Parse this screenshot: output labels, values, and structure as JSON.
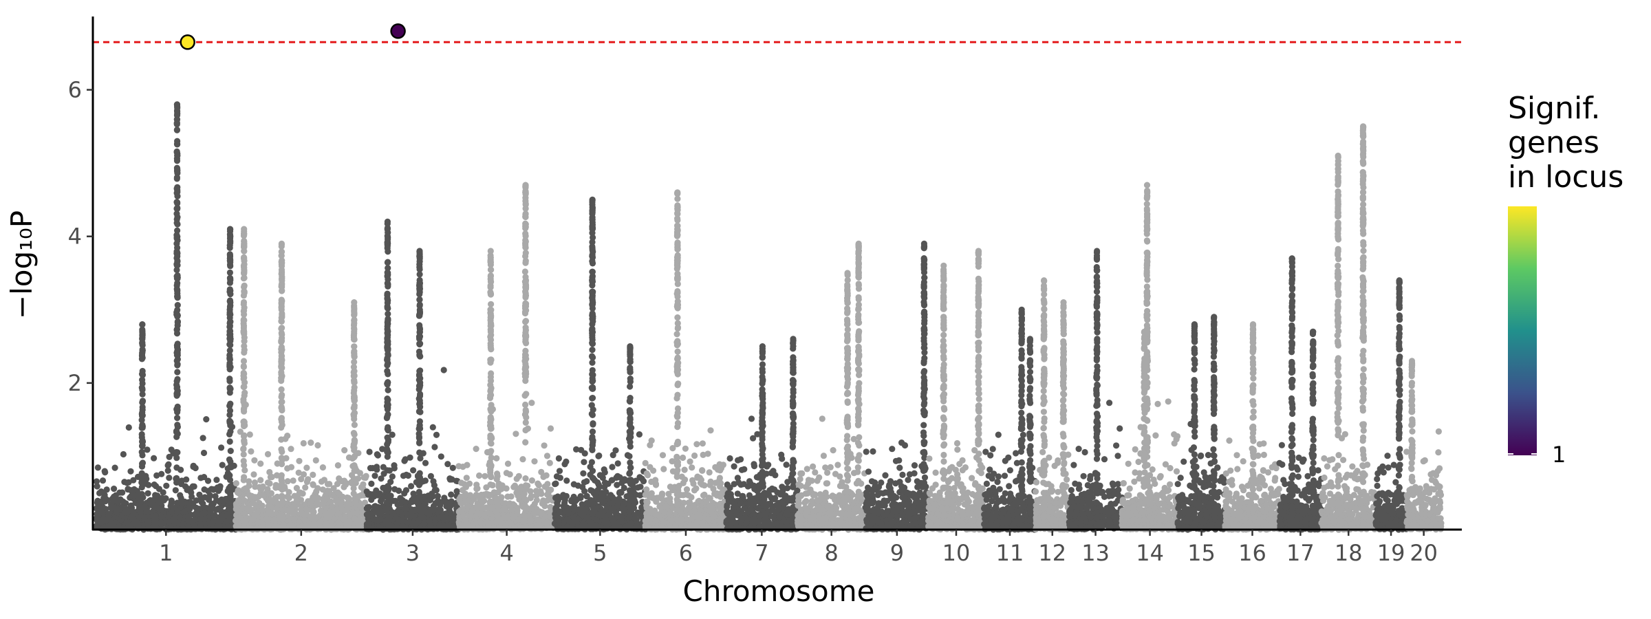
{
  "chart_data": {
    "type": "scatter",
    "subtype": "manhattan",
    "xlabel": "Chromosome",
    "ylabel": "−log₁₀P",
    "ylim": [
      0,
      7
    ],
    "yticks": [
      2,
      4,
      6
    ],
    "grid": false,
    "significance_threshold": 6.65,
    "threshold_color": "#e41a1c",
    "colors": {
      "dark": "#545454",
      "light": "#a9a9a9"
    },
    "chromosomes": [
      {
        "label": "1",
        "start": 0,
        "end": 1000,
        "peaks": [
          {
            "pos": 580,
            "h": 5.8
          },
          {
            "pos": 330,
            "h": 2.8
          },
          {
            "pos": 960,
            "h": 4.1
          }
        ]
      },
      {
        "label": "2",
        "start": 1000,
        "end": 1940,
        "peaks": [
          {
            "pos": 330,
            "h": 3.9
          },
          {
            "pos": 60,
            "h": 4.1
          },
          {
            "pos": 850,
            "h": 3.1
          }
        ]
      },
      {
        "label": "3",
        "start": 1940,
        "end": 2600,
        "peaks": [
          {
            "pos": 150,
            "h": 4.2
          },
          {
            "pos": 380,
            "h": 3.8
          }
        ]
      },
      {
        "label": "4",
        "start": 2600,
        "end": 3290,
        "peaks": [
          {
            "pos": 480,
            "h": 4.7
          },
          {
            "pos": 230,
            "h": 3.8
          }
        ]
      },
      {
        "label": "5",
        "start": 3290,
        "end": 3940,
        "peaks": [
          {
            "pos": 270,
            "h": 4.5
          },
          {
            "pos": 540,
            "h": 2.5
          }
        ]
      },
      {
        "label": "6",
        "start": 3940,
        "end": 4520,
        "peaks": [
          {
            "pos": 230,
            "h": 4.6
          }
        ]
      },
      {
        "label": "7",
        "start": 4520,
        "end": 5030,
        "peaks": [
          {
            "pos": 260,
            "h": 2.5
          },
          {
            "pos": 480,
            "h": 2.6
          }
        ]
      },
      {
        "label": "8",
        "start": 5030,
        "end": 5520,
        "peaks": [
          {
            "pos": 440,
            "h": 3.9
          },
          {
            "pos": 360,
            "h": 3.5
          }
        ]
      },
      {
        "label": "9",
        "start": 5520,
        "end": 5970,
        "peaks": [
          {
            "pos": 420,
            "h": 3.9
          }
        ]
      },
      {
        "label": "10",
        "start": 5970,
        "end": 6370,
        "peaks": [
          {
            "pos": 110,
            "h": 3.6
          },
          {
            "pos": 360,
            "h": 3.8
          }
        ]
      },
      {
        "label": "11",
        "start": 6370,
        "end": 6740,
        "peaks": [
          {
            "pos": 270,
            "h": 3.0
          },
          {
            "pos": 330,
            "h": 2.6
          }
        ]
      },
      {
        "label": "12",
        "start": 6740,
        "end": 6980,
        "peaks": [
          {
            "pos": 60,
            "h": 3.4
          },
          {
            "pos": 200,
            "h": 3.1
          }
        ]
      },
      {
        "label": "13",
        "start": 6980,
        "end": 7360,
        "peaks": [
          {
            "pos": 200,
            "h": 3.8
          }
        ]
      },
      {
        "label": "14",
        "start": 7360,
        "end": 7760,
        "peaks": [
          {
            "pos": 180,
            "h": 4.7
          },
          {
            "pos": 160,
            "h": 2.7
          }
        ]
      },
      {
        "label": "15",
        "start": 7760,
        "end": 8100,
        "peaks": [
          {
            "pos": 260,
            "h": 2.9
          },
          {
            "pos": 120,
            "h": 2.8
          }
        ]
      },
      {
        "label": "16",
        "start": 8100,
        "end": 8490,
        "peaks": [
          {
            "pos": 200,
            "h": 2.8
          }
        ]
      },
      {
        "label": "17",
        "start": 8490,
        "end": 8790,
        "peaks": [
          {
            "pos": 90,
            "h": 3.7
          },
          {
            "pos": 240,
            "h": 2.7
          }
        ]
      },
      {
        "label": "18",
        "start": 8790,
        "end": 9180,
        "peaks": [
          {
            "pos": 300,
            "h": 5.5
          },
          {
            "pos": 120,
            "h": 5.1
          }
        ]
      },
      {
        "label": "19",
        "start": 9180,
        "end": 9400,
        "peaks": [
          {
            "pos": 170,
            "h": 3.4
          }
        ]
      },
      {
        "label": "20",
        "start": 9400,
        "end": 9650,
        "peaks": [
          {
            "pos": 40,
            "h": 2.3
          }
        ]
      }
    ],
    "highlighted": [
      {
        "x": 655,
        "y": 6.65,
        "genes": 2,
        "color": "#fde725"
      },
      {
        "x": 2165,
        "y": 6.8,
        "genes": 1,
        "color": "#440154"
      }
    ],
    "legend": {
      "title_lines": [
        "Signif.",
        "genes",
        "in locus"
      ],
      "tick_label": "1",
      "gradient": [
        "#440154",
        "#3b528b",
        "#21908c",
        "#5dc963",
        "#fde725"
      ],
      "position": "right"
    }
  }
}
